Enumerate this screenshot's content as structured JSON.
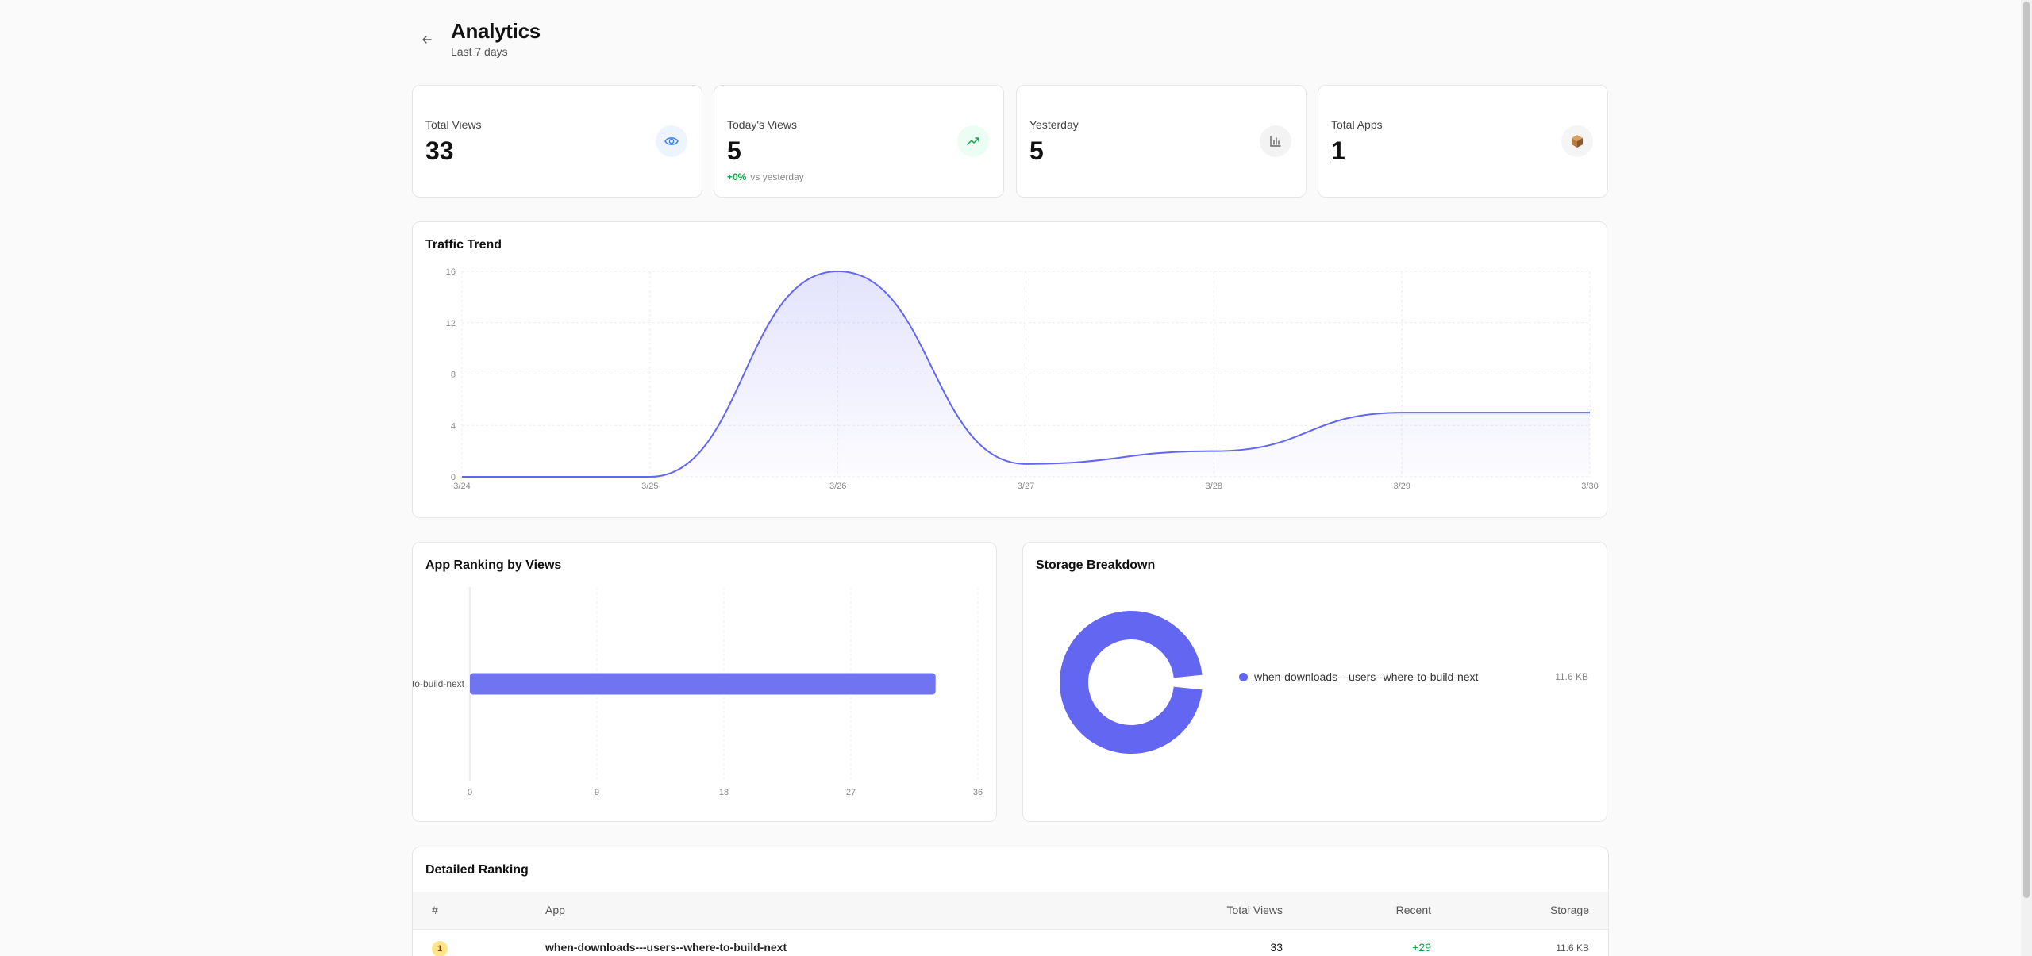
{
  "header": {
    "title": "Analytics",
    "subtitle": "Last 7 days"
  },
  "stats": [
    {
      "label": "Total Views",
      "value": "33",
      "icon": "eye-icon",
      "icon_color": "#3b82f6",
      "icon_bg": "#eef4ff"
    },
    {
      "label": "Today's Views",
      "value": "5",
      "icon": "trending-up-icon",
      "icon_color": "#16a34a",
      "icon_bg": "#ecfdf3",
      "change_value": "+0%",
      "change_text": "vs yesterday"
    },
    {
      "label": "Yesterday",
      "value": "5",
      "icon": "bar-chart-icon",
      "icon_color": "#666666",
      "icon_bg": "#f3f3f3"
    },
    {
      "label": "Total Apps",
      "value": "1",
      "icon": "package-icon",
      "icon_color": "#b7793e",
      "icon_bg": "#f5f5f5"
    }
  ],
  "traffic": {
    "title": "Traffic Trend",
    "chart_data": {
      "type": "area",
      "x": [
        "3/24",
        "3/25",
        "3/26",
        "3/27",
        "3/28",
        "3/29",
        "3/30"
      ],
      "series": [
        {
          "values": [
            0,
            0,
            16,
            1,
            2,
            5,
            5
          ]
        }
      ],
      "yticks": [
        0,
        4,
        8,
        12,
        16
      ],
      "ylim": [
        0,
        16
      ],
      "grid": true,
      "color": "#6366f1"
    }
  },
  "ranking_chart": {
    "title": "App Ranking by Views",
    "chart_data": {
      "type": "bar",
      "orientation": "horizontal",
      "categories": [
        "re-to-build-next"
      ],
      "values": [
        33
      ],
      "xticks": [
        0,
        9,
        18,
        27,
        36
      ],
      "xlim": [
        0,
        36
      ],
      "grid": true,
      "color": "#7074f0"
    }
  },
  "storage": {
    "title": "Storage Breakdown",
    "chart_data": {
      "type": "pie",
      "labels": [
        "when-downloads---users--where-to-build-next"
      ],
      "values": [
        11.6
      ],
      "display_values": [
        "11.6 KB"
      ],
      "color": "#6366f1"
    }
  },
  "table": {
    "title": "Detailed Ranking",
    "columns": [
      "#",
      "App",
      "Total Views",
      "Recent",
      "Storage"
    ],
    "rows": [
      {
        "rank": "1",
        "app": "when-downloads---users--where-to-build-next",
        "total_views": "33",
        "recent": "+29",
        "storage": "11.6 KB"
      }
    ]
  }
}
